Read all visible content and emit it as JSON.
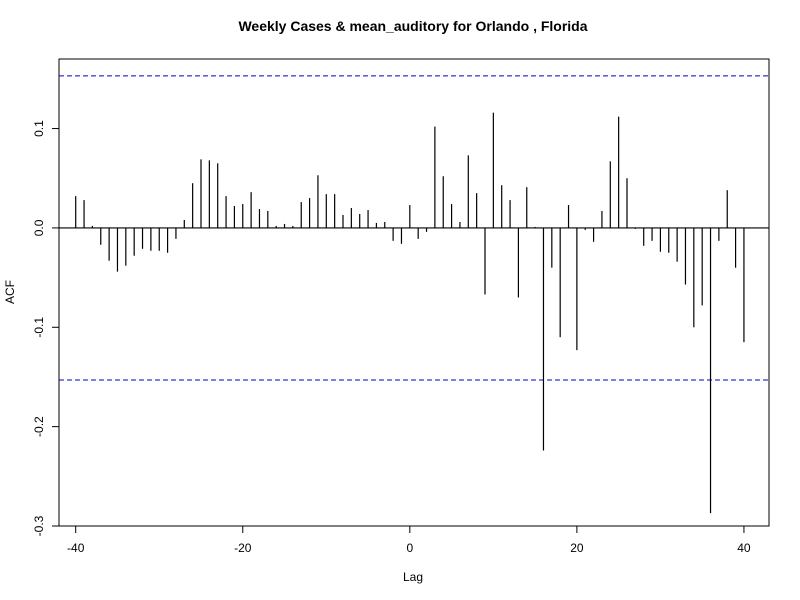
{
  "chart_data": {
    "type": "bar",
    "title": "Weekly Cases & mean_auditory for Orlando , Florida",
    "xlabel": "Lag",
    "ylabel": "ACF",
    "xlim": [
      -42,
      43
    ],
    "ylim": [
      -0.3,
      0.17
    ],
    "xticks": [
      -40,
      -20,
      0,
      20,
      40
    ],
    "yticks": [
      -0.3,
      -0.2,
      -0.1,
      0.0,
      0.1
    ],
    "ytick_labels": [
      "-0.3",
      "-0.2",
      "-0.1",
      "0.0",
      "0.1"
    ],
    "confidence_bound": 0.153,
    "colors": {
      "bars": "#000000",
      "confidence": "#0000cc",
      "zero_line": "#000000"
    },
    "lags": [
      -40,
      -39,
      -38,
      -37,
      -36,
      -35,
      -34,
      -33,
      -32,
      -31,
      -30,
      -29,
      -28,
      -27,
      -26,
      -25,
      -24,
      -23,
      -22,
      -21,
      -20,
      -19,
      -18,
      -17,
      -16,
      -15,
      -14,
      -13,
      -12,
      -11,
      -10,
      -9,
      -8,
      -7,
      -6,
      -5,
      -4,
      -3,
      -2,
      -1,
      0,
      1,
      2,
      3,
      4,
      5,
      6,
      7,
      8,
      9,
      10,
      11,
      12,
      13,
      14,
      15,
      16,
      17,
      18,
      19,
      20,
      21,
      22,
      23,
      24,
      25,
      26,
      27,
      28,
      29,
      30,
      31,
      32,
      33,
      34,
      35,
      36,
      37,
      38,
      39,
      40
    ],
    "values": [
      0.032,
      0.028,
      0.002,
      -0.017,
      -0.033,
      -0.044,
      -0.038,
      -0.028,
      -0.021,
      -0.023,
      -0.023,
      -0.025,
      -0.011,
      0.008,
      0.045,
      0.069,
      0.068,
      0.065,
      0.032,
      0.022,
      0.024,
      0.036,
      0.019,
      0.017,
      0.002,
      0.004,
      0.002,
      0.026,
      0.03,
      0.053,
      0.034,
      0.034,
      0.013,
      0.02,
      0.014,
      0.018,
      0.005,
      0.006,
      -0.013,
      -0.016,
      0.023,
      -0.011,
      -0.004,
      0.102,
      0.052,
      0.024,
      0.006,
      0.073,
      0.035,
      -0.067,
      0.116,
      0.043,
      0.028,
      -0.07,
      0.041,
      0.001,
      -0.224,
      -0.04,
      -0.11,
      0.023,
      -0.123,
      -0.002,
      -0.014,
      0.017,
      0.067,
      0.112,
      0.05,
      -0.001,
      -0.018,
      -0.013,
      -0.024,
      -0.025,
      -0.034,
      -0.057,
      -0.1,
      -0.078,
      -0.287,
      -0.013,
      0.038,
      -0.04,
      -0.115
    ]
  }
}
